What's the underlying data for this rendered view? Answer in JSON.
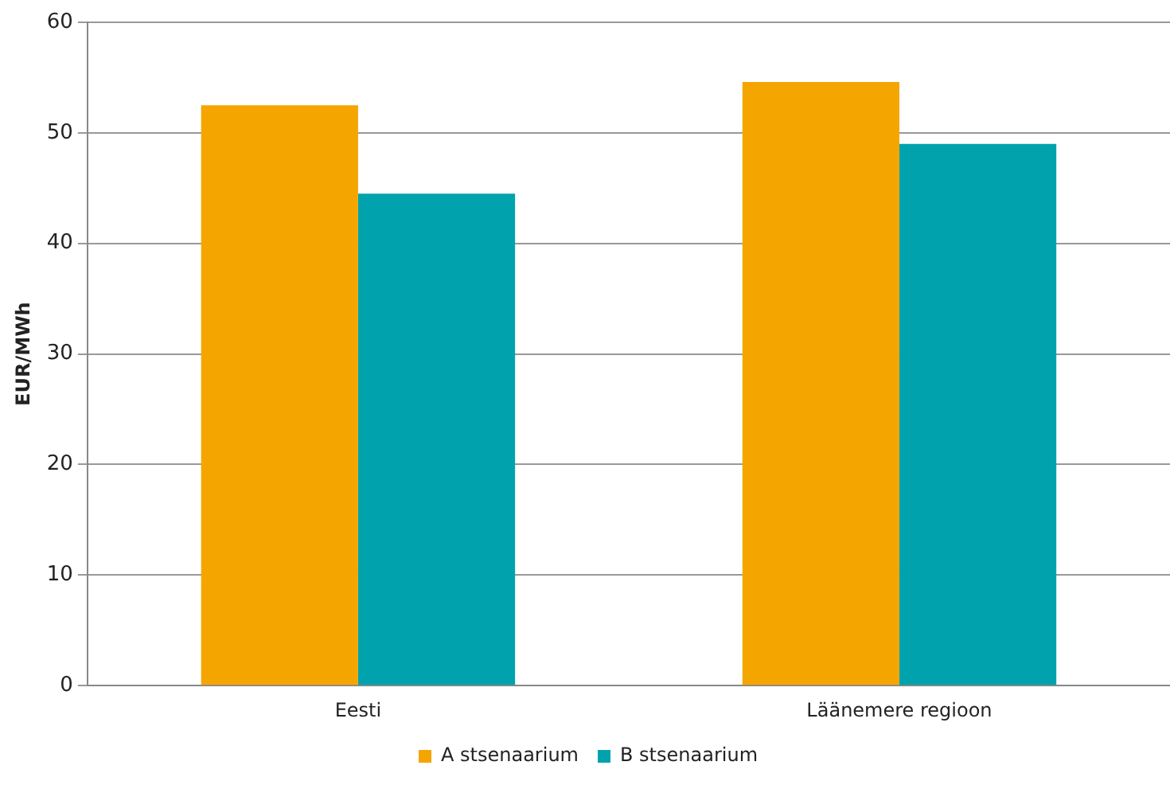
{
  "chart_data": {
    "type": "bar",
    "ylabel": "EUR/MWh",
    "categories": [
      "Eesti",
      "Läänemere regioon"
    ],
    "series": [
      {
        "name": "A stsenaarium",
        "color": "#f5a500",
        "values": [
          52.5,
          54.6
        ]
      },
      {
        "name": "B stsenaarium",
        "color": "#00a3ad",
        "values": [
          44.5,
          49.0
        ]
      }
    ],
    "ylim": [
      0,
      60
    ],
    "yticks": [
      0,
      10,
      20,
      30,
      40,
      50,
      60
    ],
    "grid": "y",
    "legend": "bottom"
  }
}
